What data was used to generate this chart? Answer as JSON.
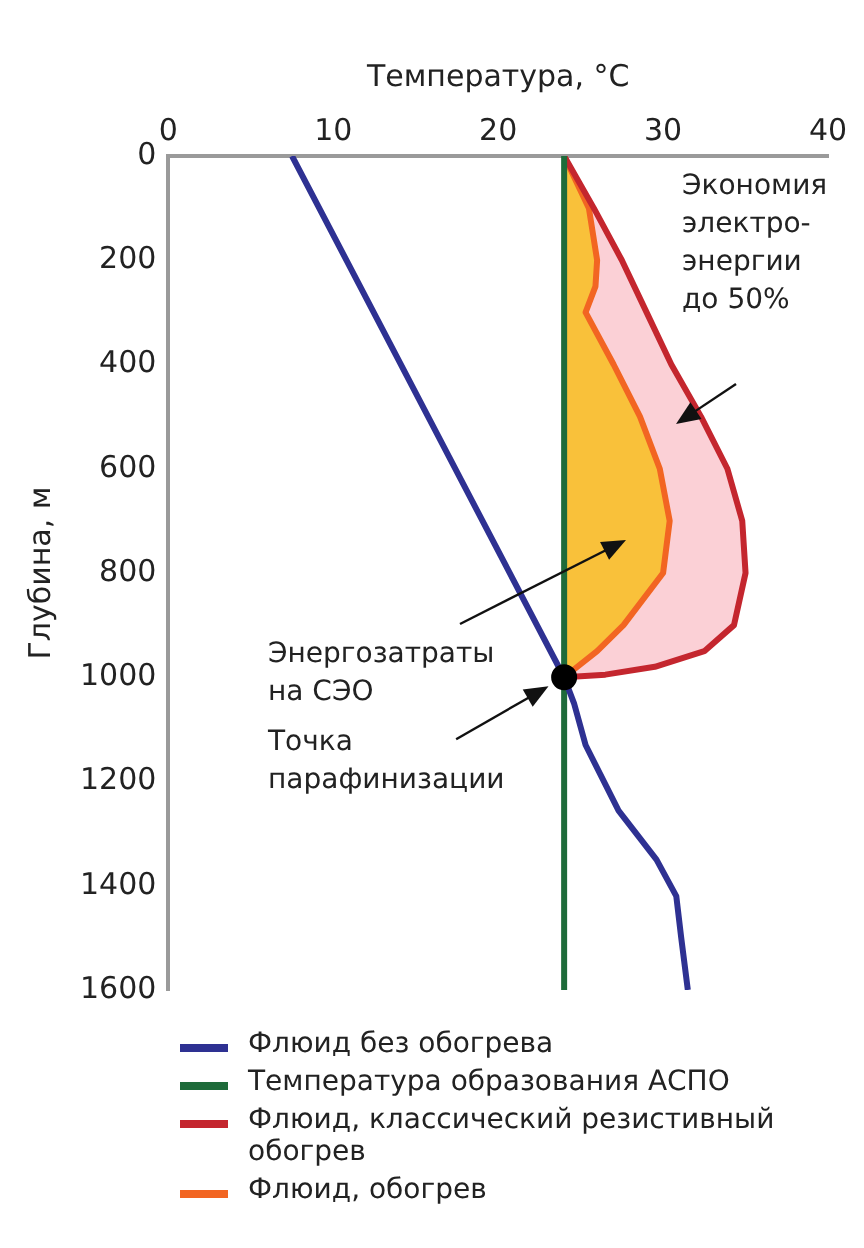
{
  "chart_data": {
    "type": "line",
    "xlabel": "Температура, °C",
    "ylabel": "Глубина, м",
    "xlim": [
      0,
      40
    ],
    "xticks": [
      0,
      10,
      20,
      30,
      40
    ],
    "ylim": [
      1600,
      0
    ],
    "yticks": [
      0,
      200,
      400,
      600,
      800,
      1000,
      1200,
      1400,
      1600
    ],
    "grid": false,
    "legend": "bottom",
    "line_style": "solid",
    "series": [
      {
        "name": "Флюид без обогрева",
        "color": "#2e3192",
        "x": [
          7.5,
          24,
          24.6,
          25.3,
          27.3,
          29.6,
          30.8,
          31.1,
          31.5
        ],
        "values": [
          0,
          1000,
          1050,
          1130,
          1256,
          1350,
          1420,
          1500,
          1600
        ]
      },
      {
        "name": "Температура образования АСПО",
        "color": "#1e6b3a",
        "x": [
          24,
          24
        ],
        "values": [
          0,
          1600
        ]
      },
      {
        "name": "Флюид, классический резистивный обогрев",
        "color": "#c4262e",
        "x": [
          24,
          25.8,
          27.5,
          29,
          30.5,
          32.3,
          33.9,
          34.8,
          35,
          34.3,
          32.5,
          29.5,
          26.5,
          24
        ],
        "values": [
          0,
          100,
          200,
          300,
          400,
          500,
          600,
          700,
          800,
          900,
          950,
          980,
          995,
          1000
        ]
      },
      {
        "name": "Флюид, обогрев",
        "color": "#f26522",
        "x": [
          24,
          25.5,
          26,
          25.9,
          25.3,
          27,
          28.6,
          29.8,
          30.4,
          30,
          27.6,
          26,
          24
        ],
        "values": [
          0,
          100,
          200,
          250,
          300,
          400,
          500,
          600,
          700,
          800,
          900,
          950,
          1000
        ]
      },
      {
        "type": "scatter",
        "color": "#000000",
        "x": [
          24
        ],
        "values": [
          1000
        ]
      }
    ],
    "annotations": [
      "Экономия электро-энергии до 50%",
      "Энергозатраты на СЭО",
      {
        "text": "Точка парафинизации",
        "x": 24,
        "y": 1000
      }
    ]
  }
}
